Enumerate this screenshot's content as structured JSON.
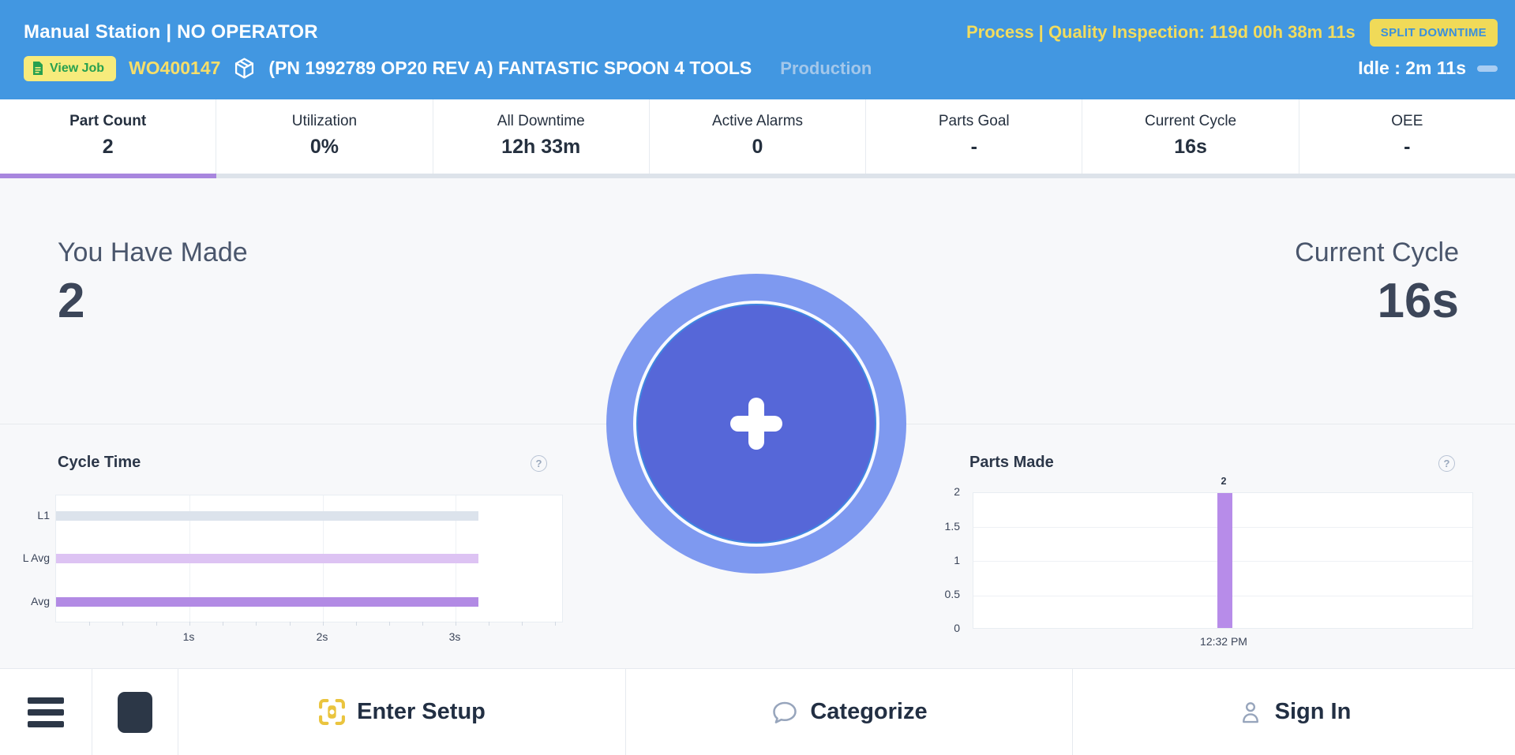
{
  "header": {
    "station_title": "Manual Station | NO OPERATOR",
    "status_text": "Process | Quality Inspection: 119d 00h 38m 11s",
    "split_downtime_label": "SPLIT DOWNTIME",
    "view_job_label": "View Job",
    "work_order": "WO400147",
    "job_description": "(PN 1992789 OP20 REV A) FANTASTIC SPOON 4 TOOLS",
    "job_stage": "Production",
    "idle_label": "Idle : 2m 11s"
  },
  "tabs": [
    {
      "label": "Part Count",
      "value": "2",
      "selected": true
    },
    {
      "label": "Utilization",
      "value": "0%",
      "selected": false
    },
    {
      "label": "All Downtime",
      "value": "12h 33m",
      "selected": false
    },
    {
      "label": "Active Alarms",
      "value": "0",
      "selected": false
    },
    {
      "label": "Parts Goal",
      "value": "-",
      "selected": false
    },
    {
      "label": "Current Cycle",
      "value": "16s",
      "selected": false
    },
    {
      "label": "OEE",
      "value": "-",
      "selected": false
    }
  ],
  "main": {
    "made_label": "You Have Made",
    "made_value": "2",
    "cycle_label": "Current Cycle",
    "cycle_value": "16s"
  },
  "chart_data": [
    {
      "type": "bar",
      "orientation": "horizontal",
      "title": "Cycle Time",
      "categories": [
        "L1",
        "L Avg",
        "Avg"
      ],
      "values": [
        3.18,
        3.18,
        3.18
      ],
      "unit": "s",
      "xticks": [
        "1s",
        "2s",
        "3s"
      ],
      "xlim": [
        0,
        3.81
      ],
      "grid": "vertical",
      "colors": [
        "#dce3ec",
        "#ddc3f3",
        "#b28ae4"
      ]
    },
    {
      "type": "bar",
      "orientation": "vertical",
      "title": "Parts Made",
      "categories": [
        "12:32 PM"
      ],
      "values": [
        2
      ],
      "bar_label": "2",
      "yticks": [
        "2",
        "1.5",
        "1",
        "0.5",
        "0"
      ],
      "ylim": [
        0,
        2
      ],
      "grid": "horizontal",
      "color": "#b78ce9"
    }
  ],
  "footer": {
    "enter_setup_label": "Enter Setup",
    "categorize_label": "Categorize",
    "sign_in_label": "Sign In"
  },
  "icons": {
    "help": "?"
  },
  "colors": {
    "header_bg": "#4297e1",
    "accent_yellow": "#f0da58",
    "accent_green": "#27a04f",
    "selected_tab_underline": "#a886de",
    "circle_outer": "#7e99f0",
    "circle_inner": "#5667d8",
    "dark_navy": "#2c3747",
    "parts_bar": "#b78ce9",
    "avg_bar": "#b28ae4"
  }
}
